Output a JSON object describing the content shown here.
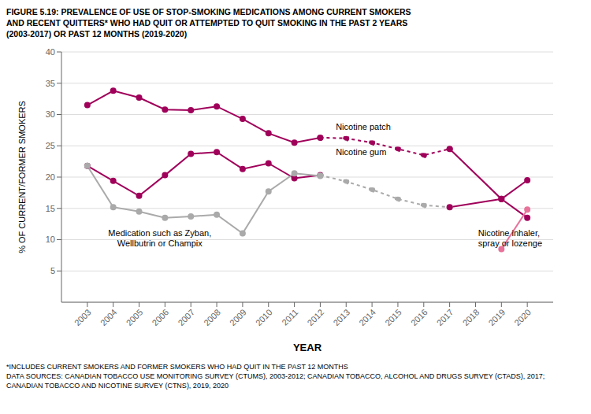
{
  "chart_data": {
    "type": "line",
    "title": "FIGURE 5.19: PREVALENCE OF USE OF STOP-SMOKING MEDICATIONS AMONG CURRENT SMOKERS\nAND RECENT QUITTERS* WHO HAD QUIT OR ATTEMPTED TO QUIT SMOKING IN THE PAST 2 YEARS\n(2003-2017) OR PAST 12 MONTHS (2019-2020)",
    "xlabel": "YEAR",
    "ylabel": "% OF CURRENT/FORMER SMOKERS",
    "footnotes": [
      "*INCLUDES CURRENT SMOKERS AND FORMER SMOKERS WHO HAD QUIT IN THE PAST 12 MONTHS",
      "DATA SOURCES: CANADIAN TOBACCO USE MONITORING SURVEY (CTUMS), 2003-2012; CANADIAN TOBACCO, ALCOHOL AND DRUGS SURVEY (CTADS), 2017;",
      "CANADIAN TOBACCO AND NICOTINE SURVEY (CTNS), 2019, 2020"
    ],
    "x": [
      2003,
      2004,
      2005,
      2006,
      2007,
      2008,
      2009,
      2010,
      2011,
      2012,
      2013,
      2014,
      2015,
      2016,
      2017,
      2019,
      2020
    ],
    "series": [
      {
        "color": "#A0005A",
        "line_style": "solid",
        "values": [
          31.5,
          33.8,
          32.7,
          30.8,
          30.7,
          31.3,
          29.3,
          27.0,
          25.5,
          26.3,
          null,
          null,
          null,
          null,
          null,
          null,
          null
        ]
      },
      {
        "color": "#A0005A",
        "line_style": "dotted",
        "values": [
          null,
          null,
          null,
          null,
          null,
          null,
          null,
          null,
          null,
          26.3,
          26.2,
          25.5,
          24.5,
          23.5,
          24.5,
          null,
          null
        ]
      },
      {
        "color": "#A0005A",
        "line_style": "solid",
        "values": [
          null,
          null,
          null,
          null,
          null,
          null,
          null,
          null,
          null,
          null,
          null,
          null,
          null,
          null,
          24.5,
          16.5,
          19.5
        ]
      },
      {
        "color": "#A0005A",
        "line_style": "solid",
        "values": [
          21.8,
          19.4,
          17.0,
          20.3,
          23.7,
          24.0,
          21.3,
          22.2,
          19.8,
          20.3,
          null,
          null,
          null,
          null,
          null,
          null,
          null
        ]
      },
      {
        "color": "#AAAAAA",
        "line_style": "dotted",
        "values": [
          null,
          null,
          null,
          null,
          null,
          null,
          null,
          null,
          null,
          20.3,
          19.3,
          18.0,
          16.5,
          15.5,
          15.2,
          null,
          null
        ]
      },
      {
        "color": "#A0005A",
        "line_style": "solid",
        "values": [
          null,
          null,
          null,
          null,
          null,
          null,
          null,
          null,
          null,
          null,
          null,
          null,
          null,
          null,
          15.2,
          16.5,
          13.5
        ]
      },
      {
        "color": "#AAAAAA",
        "line_style": "solid",
        "values": [
          21.8,
          15.2,
          14.5,
          13.5,
          13.7,
          14.0,
          11.0,
          17.7,
          20.6,
          20.2,
          null,
          null,
          null,
          null,
          null,
          null,
          null
        ]
      },
      {
        "color": "#E8739A",
        "line_style": "solid",
        "values": [
          null,
          null,
          null,
          null,
          null,
          null,
          null,
          null,
          null,
          null,
          null,
          null,
          null,
          null,
          null,
          8.5,
          14.8
        ]
      }
    ],
    "xlim": [
      2002,
      2021
    ],
    "xticks": [
      2003,
      2004,
      2005,
      2006,
      2007,
      2008,
      2009,
      2010,
      2011,
      2012,
      2013,
      2014,
      2015,
      2016,
      2017,
      2018,
      2019,
      2020
    ],
    "ylim": [
      0,
      40
    ],
    "yticks": [
      5,
      10,
      15,
      20,
      25,
      30,
      35,
      40
    ],
    "grid": true,
    "marker": "circle",
    "annotations": [
      {
        "text": "Nicotine patch",
        "x": 2012.6,
        "y": 27.2
      },
      {
        "text": "Nicotine gum",
        "x": 2012.6,
        "y": 23.2
      },
      {
        "text": "Medication such as Zyban,\nWellbutrin or Champix",
        "x": 2005.8,
        "y": 8.5
      },
      {
        "text": "Nicotine inhaler,\nspray or lozenge",
        "x": 2018.1,
        "y": 8.5
      }
    ]
  }
}
